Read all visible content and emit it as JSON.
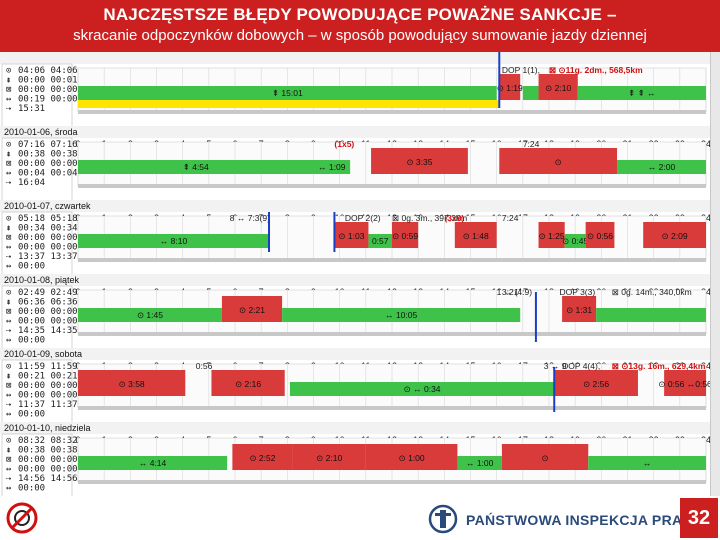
{
  "header": {
    "title": "NAJCZĘSTSZE BŁĘDY POWODUJĄCE POWAŻNE SANKCJE –",
    "subtitle": "skracanie odpoczynków dobowych – w sposób powodujący sumowanie jazdy dziennej"
  },
  "footer": {
    "institution": "PAŃSTWOWA INSPEKCJA PRACY",
    "page_number": "32"
  },
  "colors": {
    "header_bg": "#cc1f1f",
    "drive": "#d93b3b",
    "rest": "#3fc24a",
    "other_work": "#ffe400",
    "marker": "#1a3fc4"
  },
  "hour_ticks": [
    "0",
    "1",
    "2",
    "3",
    "4",
    "5",
    "6",
    "7",
    "8",
    "9",
    "10",
    "11",
    "12",
    "13",
    "14",
    "15",
    "16",
    "17",
    "18",
    "19",
    "20",
    "21",
    "22",
    "23",
    "24"
  ],
  "days": [
    {
      "date_label": "",
      "summary": [
        "04:06 04:06",
        "00:00 00:01",
        "00:00 00:00",
        "00:19 00:00",
        "15:31"
      ],
      "segments": [
        {
          "type": "rest",
          "start": 0,
          "end": 16,
          "label": "⇞ 15:01"
        },
        {
          "type": "drive",
          "start": 16.1,
          "end": 16.9,
          "label": "⊙ 1:19"
        },
        {
          "type": "rest",
          "start": 17.0,
          "end": 17.6,
          "label": ""
        },
        {
          "type": "drive",
          "start": 17.6,
          "end": 19.1,
          "label": "⊙ 2:10"
        },
        {
          "type": "rest",
          "start": 19.1,
          "end": 24,
          "label": "⇞ ⇞ ↔"
        }
      ],
      "annotations": [
        {
          "text": "DOP 1(1),",
          "hour": 16.2,
          "red": false
        },
        {
          "text": "⊠ ⊙11g. 2dm., 568,5km",
          "hour": 18.0,
          "red": true
        }
      ]
    },
    {
      "date_label": "2010-01-06, środa",
      "summary": [
        "07:16 07:16",
        "00:38 00:38",
        "00:00 00:00",
        "00:04 00:04",
        "16:04"
      ],
      "segments": [
        {
          "type": "rest",
          "start": 0,
          "end": 9.0,
          "label": "⇞ 4:54"
        },
        {
          "type": "rest",
          "start": 9.0,
          "end": 10.4,
          "label": "↔ 1:09"
        },
        {
          "type": "drive",
          "start": 11.2,
          "end": 14.9,
          "label": "⊙ 3:35"
        },
        {
          "type": "drive",
          "start": 16.1,
          "end": 20.6,
          "label": "⊙"
        },
        {
          "type": "rest",
          "start": 20.6,
          "end": 24,
          "label": "↔ 2:00"
        }
      ],
      "annotations": [
        {
          "text": "(1x5)",
          "hour": 9.8,
          "red": true
        },
        {
          "text": "7:24",
          "hour": 17.0,
          "red": false
        }
      ]
    },
    {
      "date_label": "2010-01-07, czwartek",
      "summary": [
        "05:18 05:18",
        "00:34 00:34",
        "00:00 00:00",
        "00:00 00:00",
        "13:37 13:37",
        "00:00"
      ],
      "segments": [
        {
          "type": "rest",
          "start": 0,
          "end": 7.3,
          "label": "↔ 8:10"
        },
        {
          "type": "drive",
          "start": 9.8,
          "end": 11.1,
          "label": "⊙ 1:03"
        },
        {
          "type": "rest",
          "start": 11.1,
          "end": 12.0,
          "label": "0:57"
        },
        {
          "type": "drive",
          "start": 12.0,
          "end": 13.0,
          "label": "⊙ 0:59"
        },
        {
          "type": "drive",
          "start": 14.4,
          "end": 16.0,
          "label": "⊙ 1:48"
        },
        {
          "type": "drive",
          "start": 17.6,
          "end": 18.6,
          "label": "⊙ 1:25"
        },
        {
          "type": "rest",
          "start": 18.6,
          "end": 19.4,
          "label": "⊙ 0:45"
        },
        {
          "type": "drive",
          "start": 19.4,
          "end": 20.5,
          "label": "⊙ 0:56"
        },
        {
          "type": "drive",
          "start": 21.6,
          "end": 24,
          "label": "⊙ 2:09"
        }
      ],
      "annotations": [
        {
          "text": "8 ↔ 7:3(9)",
          "hour": 5.8,
          "red": false
        },
        {
          "text": "DOP 2(2)",
          "hour": 10.2,
          "red": false
        },
        {
          "text": "⊠ 0g. 3m., 397,3km",
          "hour": 12.0,
          "red": false
        },
        {
          "text": "(3x9)",
          "hour": 14.0,
          "red": true
        },
        {
          "text": "7:24",
          "hour": 16.2,
          "red": false
        }
      ]
    },
    {
      "date_label": "2010-01-08, piątek",
      "summary": [
        "02:49 02:49",
        "06:36 06:36",
        "00:00 00:00",
        "00:00 00:00",
        "14:35 14:35",
        "00:00"
      ],
      "segments": [
        {
          "type": "rest",
          "start": 0,
          "end": 5.5,
          "label": "⊙ 1:45"
        },
        {
          "type": "drive",
          "start": 5.5,
          "end": 7.8,
          "label": "⊙ 2:21"
        },
        {
          "type": "rest",
          "start": 7.8,
          "end": 16.9,
          "label": "↔ 10:05"
        },
        {
          "type": "drive",
          "start": 18.5,
          "end": 19.8,
          "label": "⊙ 1:31"
        },
        {
          "type": "rest",
          "start": 19.8,
          "end": 24,
          "label": ""
        }
      ],
      "annotations": [
        {
          "text": "1 ↔ (4:9)",
          "hour": 16.0,
          "red": false
        },
        {
          "text": "DOP 3(3)",
          "hour": 18.4,
          "red": false
        },
        {
          "text": "⊠ 0g. 14m., 340,0km",
          "hour": 20.4,
          "red": false
        },
        {
          "text": "3:21",
          "hour": 16.2,
          "red": false
        }
      ]
    },
    {
      "date_label": "2010-01-09, sobota",
      "summary": [
        "11:59 11:59",
        "00:21 00:21",
        "00:00 00:00",
        "00:00 00:00",
        "11:37 11:37",
        "00:00"
      ],
      "segments": [
        {
          "type": "drive",
          "start": 0,
          "end": 4.1,
          "label": "⊙ 3:58"
        },
        {
          "type": "drive",
          "start": 5.1,
          "end": 7.9,
          "label": "⊙ 2:16"
        },
        {
          "type": "rest",
          "start": 8.1,
          "end": 18.2,
          "label": "⊙ ↔ 0:34"
        },
        {
          "type": "drive",
          "start": 18.2,
          "end": 21.4,
          "label": "⊙ 2:56"
        },
        {
          "type": "drive",
          "start": 22.4,
          "end": 24,
          "label": "⊙ 0:56 ↔0:56"
        }
      ],
      "annotations": [
        {
          "text": "DOP 4(4),",
          "hour": 18.5,
          "red": false
        },
        {
          "text": "⊠ ⊙13g. 16m., 629,4km",
          "hour": 20.4,
          "red": true
        },
        {
          "text": "3 ↔ 9",
          "hour": 17.8,
          "red": false
        },
        {
          "text": "0:56",
          "hour": 4.5,
          "red": false
        }
      ]
    },
    {
      "date_label": "2010-01-10, niedziela",
      "summary": [
        "08:32 08:32",
        "00:38 00:38",
        "00:00 00:00",
        "00:00 00:00",
        "14:56 14:56",
        "00:00"
      ],
      "segments": [
        {
          "type": "rest",
          "start": 0,
          "end": 5.7,
          "label": "↔ 4:14"
        },
        {
          "type": "drive",
          "start": 5.9,
          "end": 8.2,
          "label": "⊙ 2:52"
        },
        {
          "type": "drive",
          "start": 8.2,
          "end": 11.0,
          "label": "⊙ 2:10"
        },
        {
          "type": "drive",
          "start": 11.0,
          "end": 14.5,
          "label": "⊙ 1:00"
        },
        {
          "type": "rest",
          "start": 14.5,
          "end": 16.2,
          "label": "↔ 1:00"
        },
        {
          "type": "drive",
          "start": 16.2,
          "end": 19.5,
          "label": "⊙"
        },
        {
          "type": "rest",
          "start": 19.5,
          "end": 24,
          "label": "↔"
        }
      ],
      "annotations": []
    }
  ]
}
